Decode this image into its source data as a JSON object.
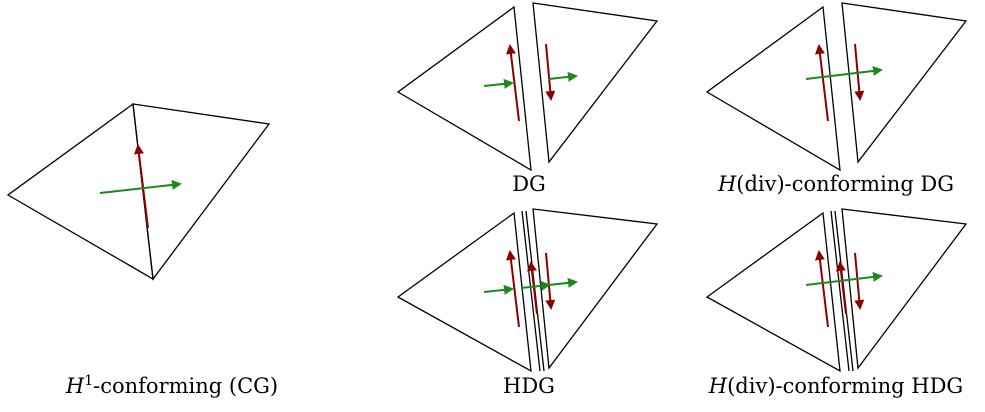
{
  "captions": {
    "cg": {
      "math": "H",
      "sup": "1",
      "text": "-conforming (CG)"
    },
    "dg": {
      "text": "DG"
    },
    "hdiv_dg": {
      "math": "H",
      "text": "(div)-conforming DG"
    },
    "hdg": {
      "text": "HDG"
    },
    "hdiv_hdg": {
      "math": "H",
      "text": "(div)-conforming HDG"
    }
  },
  "colors": {
    "tangent_arrow": "#8b0000",
    "normal_arrow": "#1a8a1a",
    "edge": "#000000"
  }
}
